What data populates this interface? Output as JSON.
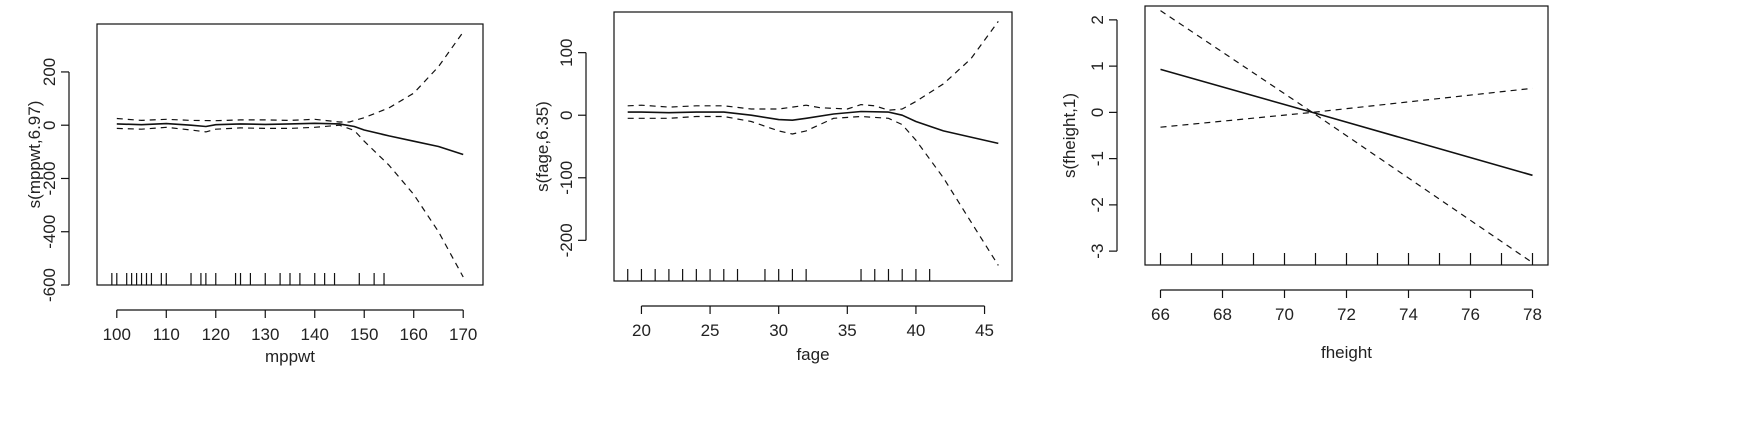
{
  "chart_data": [
    {
      "type": "line",
      "xlabel": "mppwt",
      "ylabel": "s(mppwt,6.97)",
      "xlim": [
        96,
        174
      ],
      "ylim": [
        -600,
        380
      ],
      "xticks": [
        100,
        110,
        120,
        130,
        140,
        150,
        160,
        170
      ],
      "yticks": [
        -600,
        -400,
        -200,
        0,
        200
      ],
      "grid": false,
      "series": [
        {
          "role": "estimate",
          "style": "solid",
          "x": [
            100,
            105,
            110,
            115,
            118,
            120,
            125,
            130,
            135,
            140,
            145,
            148,
            150,
            155,
            160,
            165,
            170
          ],
          "y": [
            5,
            2,
            6,
            0,
            -5,
            2,
            5,
            3,
            5,
            7,
            5,
            -5,
            -18,
            -40,
            -60,
            -80,
            -110
          ]
        },
        {
          "role": "upper",
          "style": "dashed",
          "x": [
            100,
            105,
            110,
            115,
            120,
            125,
            130,
            135,
            140,
            145,
            147,
            150,
            155,
            160,
            165,
            170
          ],
          "y": [
            25,
            18,
            22,
            18,
            17,
            20,
            20,
            18,
            22,
            12,
            12,
            28,
            65,
            120,
            220,
            350
          ]
        },
        {
          "role": "lower",
          "style": "dashed",
          "x": [
            100,
            105,
            110,
            115,
            118,
            120,
            125,
            130,
            135,
            140,
            145,
            148,
            150,
            155,
            160,
            165,
            170
          ],
          "y": [
            -12,
            -15,
            -8,
            -18,
            -25,
            -15,
            -10,
            -12,
            -12,
            -8,
            0,
            -20,
            -60,
            -150,
            -260,
            -400,
            -570
          ]
        }
      ],
      "rug": [
        99,
        100,
        102,
        103,
        104,
        105,
        106,
        107,
        109,
        110,
        115,
        117,
        118,
        120,
        124,
        125,
        127,
        130,
        133,
        135,
        137,
        140,
        142,
        144,
        149,
        152,
        154
      ]
    },
    {
      "type": "line",
      "xlabel": "fage",
      "ylabel": "s(fage,6.35)",
      "xlim": [
        18,
        47
      ],
      "ylim": [
        -265,
        165
      ],
      "xticks": [
        20,
        25,
        30,
        35,
        40,
        45
      ],
      "yticks": [
        -200,
        -100,
        0,
        100
      ],
      "grid": false,
      "series": [
        {
          "role": "estimate",
          "style": "solid",
          "x": [
            19,
            20,
            22,
            24,
            26,
            28,
            30,
            31,
            32,
            34,
            36,
            38,
            39,
            40,
            42,
            44,
            46
          ],
          "y": [
            5,
            5,
            4,
            5,
            5,
            0,
            -7,
            -8,
            -5,
            2,
            6,
            5,
            0,
            -10,
            -25,
            -35,
            -45
          ]
        },
        {
          "role": "upper",
          "style": "dashed",
          "x": [
            19,
            20,
            22,
            24,
            26,
            28,
            30,
            32,
            33,
            35,
            36,
            37,
            38,
            39,
            40,
            42,
            44,
            46
          ],
          "y": [
            15,
            16,
            13,
            15,
            15,
            10,
            10,
            16,
            12,
            10,
            17,
            15,
            8,
            10,
            22,
            50,
            90,
            150
          ]
        },
        {
          "role": "lower",
          "style": "dashed",
          "x": [
            19,
            20,
            22,
            24,
            26,
            28,
            30,
            31,
            32,
            34,
            36,
            38,
            39,
            40,
            42,
            44,
            46
          ],
          "y": [
            -5,
            -5,
            -5,
            -2,
            -2,
            -10,
            -25,
            -30,
            -25,
            -5,
            -2,
            -5,
            -15,
            -40,
            -100,
            -170,
            -240
          ]
        }
      ],
      "rug": [
        19,
        20,
        21,
        22,
        23,
        24,
        25,
        26,
        27,
        29,
        30,
        31,
        32,
        36,
        37,
        38,
        39,
        40,
        41
      ]
    },
    {
      "type": "line",
      "xlabel": "fheight",
      "ylabel": "s(fheight,1)",
      "xlim": [
        65.5,
        78.5
      ],
      "ylim": [
        -3.3,
        2.3
      ],
      "xticks": [
        66,
        68,
        70,
        72,
        74,
        76,
        78
      ],
      "yticks": [
        -3,
        -2,
        -1,
        0,
        1,
        2
      ],
      "grid": false,
      "series": [
        {
          "role": "estimate",
          "style": "solid",
          "x": [
            66,
            70.9,
            78
          ],
          "y": [
            0.93,
            0.0,
            -1.36
          ]
        },
        {
          "role": "upper",
          "style": "dashed",
          "x": [
            66,
            70.9,
            78
          ],
          "y": [
            2.2,
            0.0,
            -3.25
          ]
        },
        {
          "role": "lower",
          "style": "dashed",
          "x": [
            66,
            70.9,
            78
          ],
          "y": [
            -0.32,
            0.0,
            0.52
          ]
        }
      ],
      "rug": [
        66,
        67,
        68,
        69,
        70,
        71,
        72,
        73,
        74,
        75,
        76,
        77,
        78
      ]
    }
  ]
}
